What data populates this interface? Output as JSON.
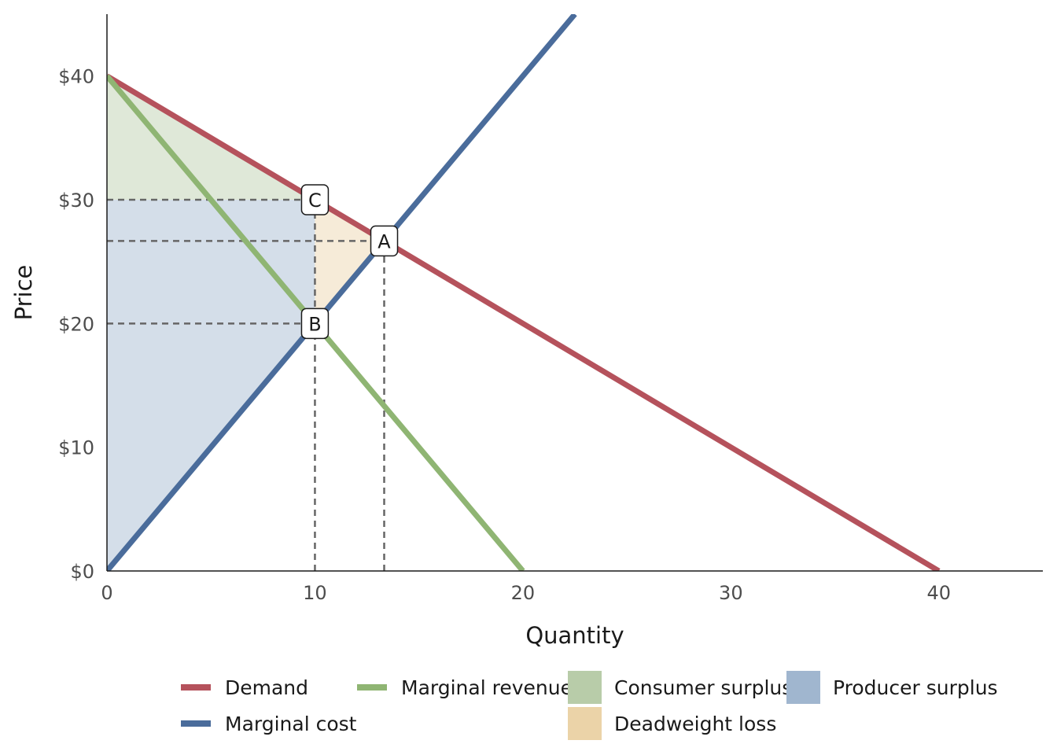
{
  "chart_data": {
    "type": "line",
    "title": "",
    "xlabel": "Quantity",
    "ylabel": "Price",
    "xlim": [
      0,
      45
    ],
    "ylim": [
      0,
      45
    ],
    "x_ticks": [
      0,
      10,
      20,
      30,
      40
    ],
    "x_tick_labels": [
      "0",
      "10",
      "20",
      "30",
      "40"
    ],
    "y_ticks": [
      0,
      10,
      20,
      30,
      40
    ],
    "y_tick_labels": [
      "$0",
      "$10",
      "$20",
      "$30",
      "$40"
    ],
    "grid": false,
    "legend_position": "bottom",
    "series": [
      {
        "name": "Demand",
        "kind": "line",
        "color": "#b5525c",
        "x": [
          0,
          40
        ],
        "y": [
          40,
          0
        ]
      },
      {
        "name": "Marginal cost",
        "kind": "line",
        "color": "#4a6c9b",
        "x": [
          0,
          22.5
        ],
        "y": [
          0,
          45
        ]
      },
      {
        "name": "Marginal revenue",
        "kind": "line",
        "color": "#8fb573",
        "x": [
          0,
          20
        ],
        "y": [
          40,
          0
        ]
      }
    ],
    "areas": [
      {
        "name": "Consumer surplus",
        "color": "#b8cca9",
        "x": [
          0,
          10,
          0
        ],
        "y": [
          40,
          30,
          30
        ]
      },
      {
        "name": "Producer surplus",
        "color": "#a0b6cf",
        "x": [
          0,
          10,
          10,
          0
        ],
        "y": [
          30,
          30,
          20,
          0
        ]
      },
      {
        "name": "Deadweight loss",
        "color": "#ebd3a8",
        "x": [
          10,
          13.33,
          10
        ],
        "y": [
          30,
          26.67,
          20
        ]
      }
    ],
    "points": [
      {
        "label": "C",
        "x": 10,
        "y": 30
      },
      {
        "label": "A",
        "x": 13.33,
        "y": 26.67
      },
      {
        "label": "B",
        "x": 10,
        "y": 20
      }
    ],
    "reference_lines": [
      {
        "orientation": "horizontal",
        "y": 30,
        "x_to": 10
      },
      {
        "orientation": "horizontal",
        "y": 26.67,
        "x_to": 13.33
      },
      {
        "orientation": "horizontal",
        "y": 20,
        "x_to": 10
      },
      {
        "orientation": "vertical",
        "x": 10,
        "y_to": 30
      },
      {
        "orientation": "vertical",
        "x": 13.33,
        "y_to": 26.67
      }
    ],
    "legend": [
      {
        "label": "Demand",
        "symbol": "line",
        "color": "#b5525c"
      },
      {
        "label": "Marginal revenue",
        "symbol": "line",
        "color": "#8fb573"
      },
      {
        "label": "Consumer surplus",
        "symbol": "box",
        "color": "#b8cca9"
      },
      {
        "label": "Producer surplus",
        "symbol": "box",
        "color": "#a0b6cf"
      },
      {
        "label": "Marginal cost",
        "symbol": "line",
        "color": "#4a6c9b"
      },
      {
        "label": "Deadweight loss",
        "symbol": "box",
        "color": "#ebd3a8"
      }
    ]
  }
}
